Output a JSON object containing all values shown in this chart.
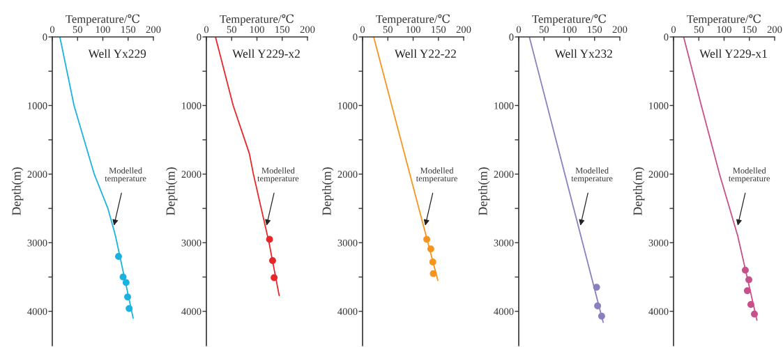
{
  "chart_data": [
    {
      "type": "line",
      "title": "Well Yx229",
      "xlabel": "Temperature/℃",
      "ylabel": "Depth(m)",
      "xlim": [
        0,
        200
      ],
      "xticks": [
        0,
        50,
        100,
        150,
        200
      ],
      "ylim": [
        4500,
        0
      ],
      "yticks": [
        0,
        {
          "value": 500,
          "label": null
        },
        1000,
        {
          "value": 1500,
          "label": null
        },
        2000,
        {
          "value": 2500,
          "label": null
        },
        3000,
        {
          "value": 3500,
          "label": null
        },
        4000
      ],
      "grid": false,
      "annotations": [
        {
          "text": "Modelled\ntemperature",
          "x": 122,
          "y": 2750
        }
      ],
      "series": [
        {
          "color": "#1ab3e0",
          "x": [
            15,
            43,
            83,
            110,
            125,
            160
          ],
          "values": [
            0,
            1000,
            2000,
            2500,
            2900,
            4100
          ]
        },
        {
          "type": "scatter",
          "marker": "circle",
          "color": "#1ab3e0",
          "x": [
            131,
            140,
            146,
            149,
            152
          ],
          "values": [
            3200,
            3500,
            3580,
            3790,
            3960
          ]
        }
      ]
    },
    {
      "type": "line",
      "title": "Well Y229-x2",
      "xlabel": "Temperature/℃",
      "ylabel": "Depth(m)",
      "xlim": [
        0,
        200
      ],
      "xticks": [
        0,
        50,
        100,
        150,
        200
      ],
      "ylim": [
        4500,
        0
      ],
      "yticks": [
        0,
        {
          "value": 500,
          "label": null
        },
        1000,
        {
          "value": 1500,
          "label": null
        },
        2000,
        {
          "value": 2500,
          "label": null
        },
        3000,
        {
          "value": 3500,
          "label": null
        },
        4000
      ],
      "grid": false,
      "annotations": [
        {
          "text": "Modelled\ntemperature",
          "x": 119,
          "y": 2750
        }
      ],
      "series": [
        {
          "color": "#e8262a",
          "x": [
            18,
            53,
            85,
            93,
            124,
            144
          ],
          "values": [
            0,
            1000,
            1700,
            2000,
            3000,
            3770
          ]
        },
        {
          "type": "scatter",
          "marker": "circle",
          "color": "#e8262a",
          "x": [
            125,
            131,
            134
          ],
          "values": [
            2950,
            3260,
            3510
          ]
        }
      ]
    },
    {
      "type": "line",
      "title": "Well Y22-22",
      "xlabel": "Temperature/℃",
      "ylabel": "Depth(m)",
      "xlim": [
        0,
        200
      ],
      "xticks": [
        0,
        50,
        100,
        150,
        200
      ],
      "ylim": [
        4500,
        0
      ],
      "yticks": [
        0,
        {
          "value": 500,
          "label": null
        },
        1000,
        {
          "value": 1500,
          "label": null
        },
        2000,
        {
          "value": 2500,
          "label": null
        },
        3000,
        {
          "value": 3500,
          "label": null
        },
        4000
      ],
      "grid": false,
      "annotations": [
        {
          "text": "Modelled\ntemperature",
          "x": 124,
          "y": 2750
        }
      ],
      "series": [
        {
          "color": "#f7941d",
          "x": [
            22,
            149
          ],
          "values": [
            0,
            3550
          ]
        },
        {
          "type": "scatter",
          "marker": "circle",
          "color": "#f7941d",
          "x": [
            127,
            135,
            139,
            140
          ],
          "values": [
            2950,
            3090,
            3280,
            3450
          ]
        }
      ]
    },
    {
      "type": "line",
      "title": "Well Yx232",
      "xlabel": "Temperature/℃",
      "ylabel": "Depth(m)",
      "xlim": [
        0,
        200
      ],
      "xticks": [
        0,
        50,
        100,
        150,
        200
      ],
      "ylim": [
        4500,
        0
      ],
      "yticks": [
        0,
        {
          "value": 500,
          "label": null
        },
        1000,
        {
          "value": 1500,
          "label": null
        },
        2000,
        {
          "value": 2500,
          "label": null
        },
        3000,
        {
          "value": 3500,
          "label": null
        },
        4000
      ],
      "grid": false,
      "annotations": [
        {
          "text": "Modelled\ntemperature",
          "x": 122,
          "y": 2750
        }
      ],
      "series": [
        {
          "color": "#8a7fbf",
          "x": [
            21,
            167
          ],
          "values": [
            0,
            4160
          ]
        },
        {
          "type": "scatter",
          "marker": "circle",
          "color": "#8a7fbf",
          "x": [
            154,
            156,
            164
          ],
          "values": [
            3650,
            3920,
            4070
          ]
        }
      ]
    },
    {
      "type": "line",
      "title": "Well Y229-x1",
      "xlabel": "Temperature/℃",
      "ylabel": "Depth(m)",
      "xlim": [
        0,
        200
      ],
      "xticks": [
        0,
        50,
        100,
        150,
        200
      ],
      "ylim": [
        4500,
        0
      ],
      "yticks": [
        0,
        {
          "value": 500,
          "label": null
        },
        1000,
        {
          "value": 1500,
          "label": null
        },
        2000,
        {
          "value": 2500,
          "label": null
        },
        3000,
        {
          "value": 3500,
          "label": null
        },
        4000
      ],
      "grid": false,
      "annotations": [
        {
          "text": "Modelled\ntemperature",
          "x": 127,
          "y": 2750
        }
      ],
      "series": [
        {
          "color": "#c8508a",
          "x": [
            20,
            55,
            91,
            127,
            165
          ],
          "values": [
            0,
            1000,
            2000,
            2900,
            4130
          ]
        },
        {
          "type": "scatter",
          "marker": "circle",
          "color": "#c8508a",
          "x": [
            142,
            149,
            146,
            153,
            160
          ],
          "values": [
            3400,
            3540,
            3700,
            3900,
            4040
          ]
        }
      ]
    }
  ]
}
